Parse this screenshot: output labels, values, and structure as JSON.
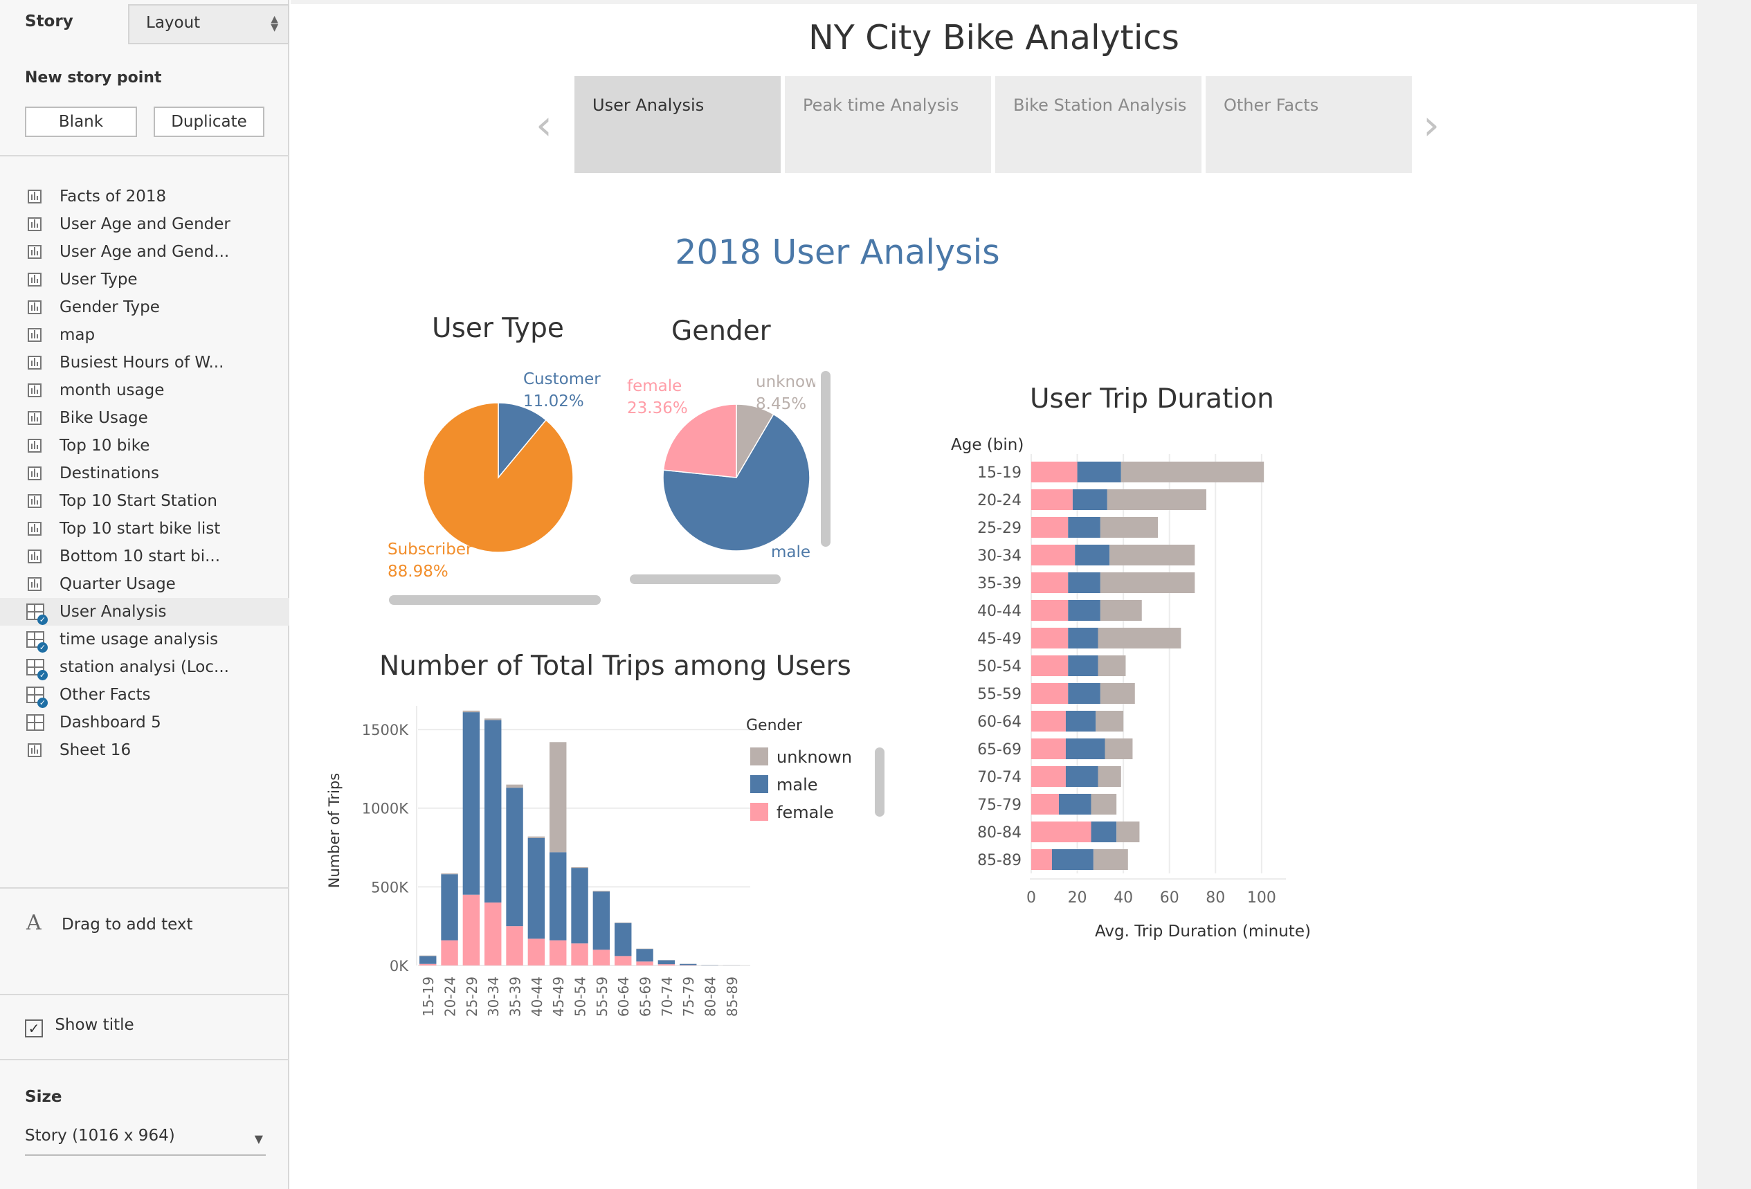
{
  "sidebar": {
    "tab_story": "Story",
    "tab_layout": "Layout",
    "new_story_point": "New story point",
    "blank_label": "Blank",
    "duplicate_label": "Duplicate",
    "items": [
      {
        "label": "Facts of 2018",
        "icon": "sheet"
      },
      {
        "label": "User Age and Gender",
        "icon": "sheet"
      },
      {
        "label": "User Age and Gend...",
        "icon": "sheet"
      },
      {
        "label": "User Type",
        "icon": "sheet"
      },
      {
        "label": "Gender Type",
        "icon": "sheet"
      },
      {
        "label": "map",
        "icon": "sheet"
      },
      {
        "label": "Busiest Hours of W...",
        "icon": "sheet"
      },
      {
        "label": "month usage",
        "icon": "sheet"
      },
      {
        "label": "Bike Usage",
        "icon": "sheet"
      },
      {
        "label": "Top 10 bike",
        "icon": "sheet"
      },
      {
        "label": "Destinations",
        "icon": "sheet"
      },
      {
        "label": "Top 10 Start Station",
        "icon": "sheet"
      },
      {
        "label": "Top 10 start bike list",
        "icon": "sheet"
      },
      {
        "label": "Bottom 10 start bi...",
        "icon": "sheet"
      },
      {
        "label": "Quarter Usage",
        "icon": "sheet"
      },
      {
        "label": "User Analysis",
        "icon": "dashboard-check",
        "active": true
      },
      {
        "label": "time usage analysis",
        "icon": "dashboard-check"
      },
      {
        "label": "station analysi (Loc...",
        "icon": "dashboard-check"
      },
      {
        "label": "Other Facts",
        "icon": "dashboard-check"
      },
      {
        "label": "Dashboard 5",
        "icon": "dashboard"
      },
      {
        "label": "Sheet 16",
        "icon": "sheet"
      }
    ],
    "drag_text": "Drag to add text",
    "show_title": "Show title",
    "show_title_checked": true,
    "size_label": "Size",
    "size_value": "Story (1016 x 964)"
  },
  "story": {
    "title": "NY City Bike Analytics",
    "tabs": [
      {
        "label": "User Analysis",
        "active": true
      },
      {
        "label": "Peak time Analysis",
        "active": false
      },
      {
        "label": "Bike Station Analysis",
        "active": false
      },
      {
        "label": "Other Facts",
        "active": false
      }
    ]
  },
  "dashboard": {
    "title": "2018 User Analysis",
    "user_type_title": "User Type",
    "gender_title": "Gender",
    "trips_title": "Number of Total Trips among Users",
    "duration_title": "User Trip Duration"
  },
  "colors": {
    "customer": "#4e79a7",
    "subscriber": "#f28e2b",
    "male": "#4e79a7",
    "female": "#ff9da7",
    "unknown": "#bab0ac",
    "title_blue": "#4a78a8"
  },
  "chart_data": [
    {
      "type": "pie",
      "title": "User Type",
      "slices": [
        {
          "name": "Customer",
          "label": "11.02%",
          "value": 11.02
        },
        {
          "name": "Subscriber",
          "label": "88.98%",
          "value": 88.98
        }
      ]
    },
    {
      "type": "pie",
      "title": "Gender",
      "slices": [
        {
          "name": "female",
          "label": "23.36%",
          "value": 23.36
        },
        {
          "name": "unknow",
          "label": "8.45%",
          "value": 8.45
        },
        {
          "name": "male",
          "label": "",
          "value": 68.19
        }
      ]
    },
    {
      "type": "bar",
      "stacked": true,
      "title": "Number of Total Trips among Users",
      "ylabel": "Number of Trips",
      "ylim": [
        0,
        1650000
      ],
      "yticks": [
        0,
        500000,
        1000000,
        1500000
      ],
      "ytick_labels": [
        "0K",
        "500K",
        "1000K",
        "1500K"
      ],
      "categories": [
        "15-19",
        "20-24",
        "25-29",
        "30-34",
        "35-39",
        "40-44",
        "45-49",
        "50-54",
        "55-59",
        "60-64",
        "65-69",
        "70-74",
        "75-79",
        "80-84",
        "85-89"
      ],
      "legend_title": "Gender",
      "legend": [
        "unknown",
        "male",
        "female"
      ],
      "series": [
        {
          "name": "female",
          "values": [
            10000,
            160000,
            450000,
            400000,
            250000,
            170000,
            160000,
            140000,
            100000,
            60000,
            25000,
            8000,
            2000,
            500,
            200
          ]
        },
        {
          "name": "male",
          "values": [
            50000,
            420000,
            1160000,
            1160000,
            880000,
            640000,
            560000,
            480000,
            370000,
            210000,
            80000,
            25000,
            8000,
            1500,
            500
          ]
        },
        {
          "name": "unknown",
          "values": [
            3000,
            5000,
            10000,
            10000,
            20000,
            10000,
            700000,
            5000,
            5000,
            3000,
            2000,
            1000,
            500,
            200,
            100
          ]
        }
      ]
    },
    {
      "type": "bar",
      "orientation": "horizontal",
      "stacked": true,
      "title": "User Trip Duration",
      "xlabel": "Avg. Trip Duration (minute)",
      "category_header": "Age (bin)",
      "xlim": [
        0,
        105
      ],
      "xticks": [
        0,
        20,
        40,
        60,
        80,
        100
      ],
      "categories": [
        "15-19",
        "20-24",
        "25-29",
        "30-34",
        "35-39",
        "40-44",
        "45-49",
        "50-54",
        "55-59",
        "60-64",
        "65-69",
        "70-74",
        "75-79",
        "80-84",
        "85-89"
      ],
      "series": [
        {
          "name": "female",
          "values": [
            20,
            18,
            16,
            19,
            16,
            16,
            16,
            16,
            16,
            15,
            15,
            15,
            12,
            26,
            9
          ]
        },
        {
          "name": "male",
          "values": [
            19,
            15,
            14,
            15,
            14,
            14,
            13,
            13,
            14,
            13,
            17,
            14,
            14,
            11,
            18
          ]
        },
        {
          "name": "unknown",
          "values": [
            62,
            43,
            25,
            37,
            41,
            18,
            36,
            12,
            15,
            12,
            12,
            10,
            11,
            10,
            15
          ]
        }
      ]
    }
  ]
}
